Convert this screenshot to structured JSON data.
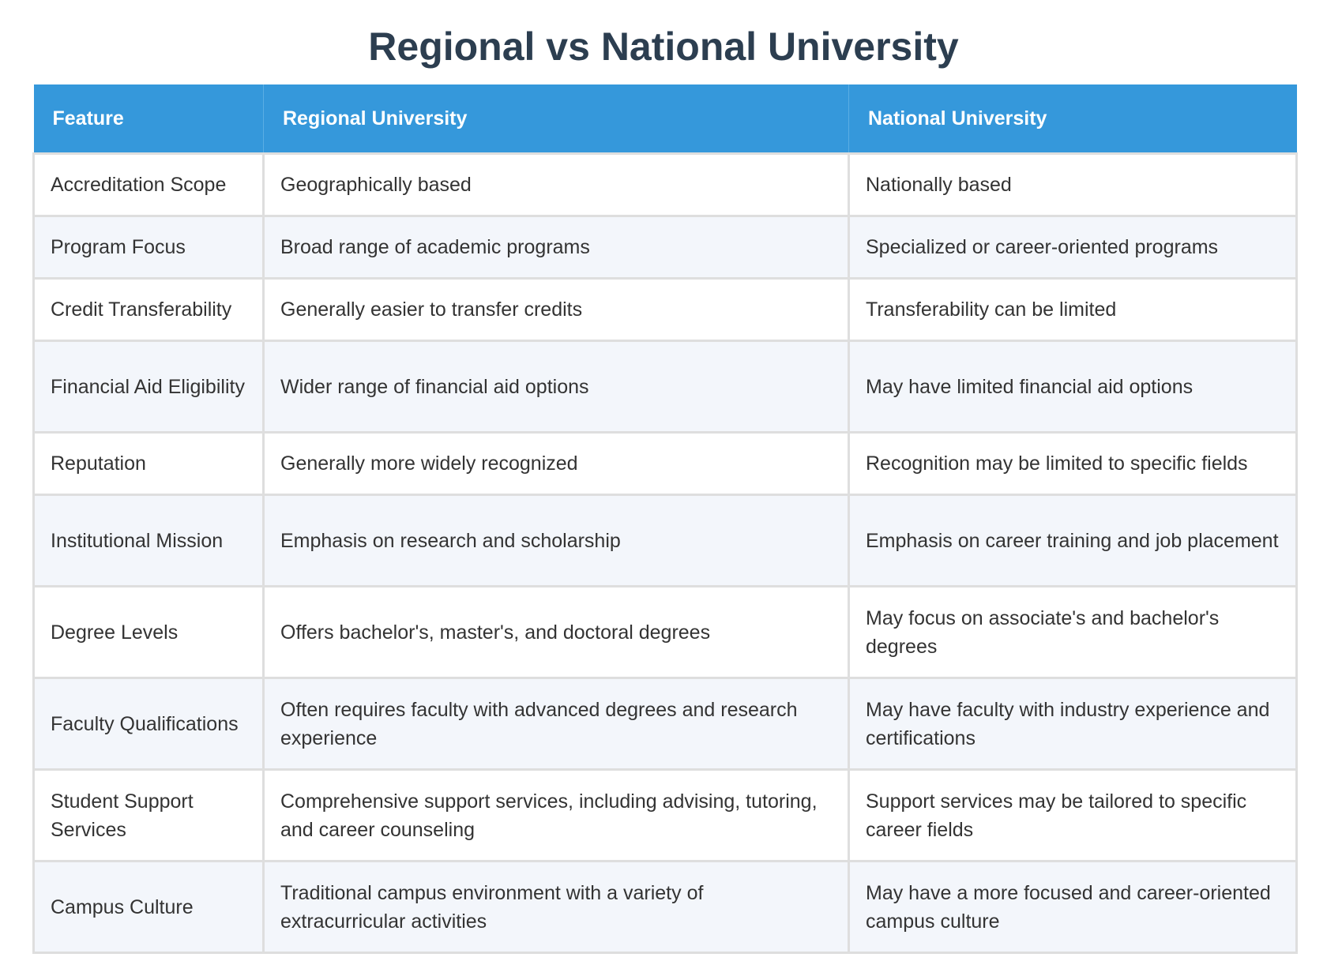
{
  "title": "Regional vs National University",
  "table": {
    "headers": [
      "Feature",
      "Regional University",
      "National University"
    ],
    "rows": [
      [
        "Accreditation Scope",
        "Geographically based",
        "Nationally based"
      ],
      [
        "Program Focus",
        "Broad range of academic programs",
        "Specialized or career-oriented programs"
      ],
      [
        "Credit Transferability",
        "Generally easier to transfer credits",
        "Transferability can be limited"
      ],
      [
        "Financial Aid Eligibility",
        "Wider range of financial aid options",
        "May have limited financial aid options"
      ],
      [
        "Reputation",
        "Generally more widely recognized",
        "Recognition may be limited to specific fields"
      ],
      [
        "Institutional Mission",
        "Emphasis on research and scholarship",
        "Emphasis on career training and job placement"
      ],
      [
        "Degree Levels",
        "Offers bachelor's, master's, and doctoral degrees",
        "May focus on associate's and bachelor's degrees"
      ],
      [
        "Faculty Qualifications",
        "Often requires faculty with advanced degrees and research experience",
        "May have faculty with industry experience and certifications"
      ],
      [
        "Student Support Services",
        "Comprehensive support services, including advising, tutoring, and career counseling",
        "Support services may be tailored to specific career fields"
      ],
      [
        "Campus Culture",
        "Traditional campus environment with a variety of extracurricular activities",
        "May have a more focused and career-oriented campus culture"
      ]
    ]
  }
}
